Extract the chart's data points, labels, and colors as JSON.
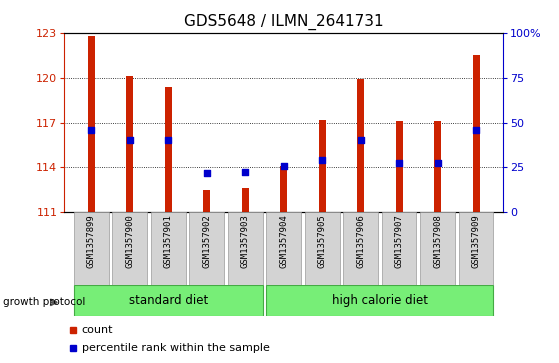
{
  "title": "GDS5648 / ILMN_2641731",
  "samples": [
    "GSM1357899",
    "GSM1357900",
    "GSM1357901",
    "GSM1357902",
    "GSM1357903",
    "GSM1357904",
    "GSM1357905",
    "GSM1357906",
    "GSM1357907",
    "GSM1357908",
    "GSM1357909"
  ],
  "bar_bottoms": [
    111,
    111,
    111,
    111,
    111,
    111,
    111,
    111,
    111,
    111,
    111
  ],
  "bar_tops": [
    122.8,
    120.1,
    119.4,
    112.5,
    112.6,
    114.1,
    117.2,
    119.9,
    117.1,
    117.1,
    121.5
  ],
  "percentile_values": [
    116.5,
    115.8,
    115.8,
    113.6,
    113.7,
    114.1,
    114.5,
    115.8,
    114.3,
    114.3,
    116.5
  ],
  "bar_color": "#cc2200",
  "dot_color": "#0000cc",
  "ylim_left": [
    111,
    123
  ],
  "yticks_left": [
    111,
    114,
    117,
    120,
    123
  ],
  "ylim_right": [
    0,
    100
  ],
  "yticks_right": [
    0,
    25,
    50,
    75,
    100
  ],
  "yticklabels_right": [
    "0",
    "25",
    "50",
    "75",
    "100%"
  ],
  "group_labels": [
    "standard diet",
    "high calorie diet"
  ],
  "group_ranges": [
    [
      0,
      4
    ],
    [
      5,
      10
    ]
  ],
  "group_color": "#77ee77",
  "group_label_row": "growth protocol",
  "bar_color_legend": "#cc2200",
  "dot_color_legend": "#0000cc",
  "xlabel_color": "#cc2200",
  "right_axis_color": "#0000cc",
  "legend_count_label": "count",
  "legend_pct_label": "percentile rank within the sample",
  "bar_width": 0.18,
  "title_fontsize": 11,
  "tick_fontsize": 8,
  "label_fontsize": 8,
  "sample_label_fontsize": 6.5,
  "group_fontsize": 8.5
}
